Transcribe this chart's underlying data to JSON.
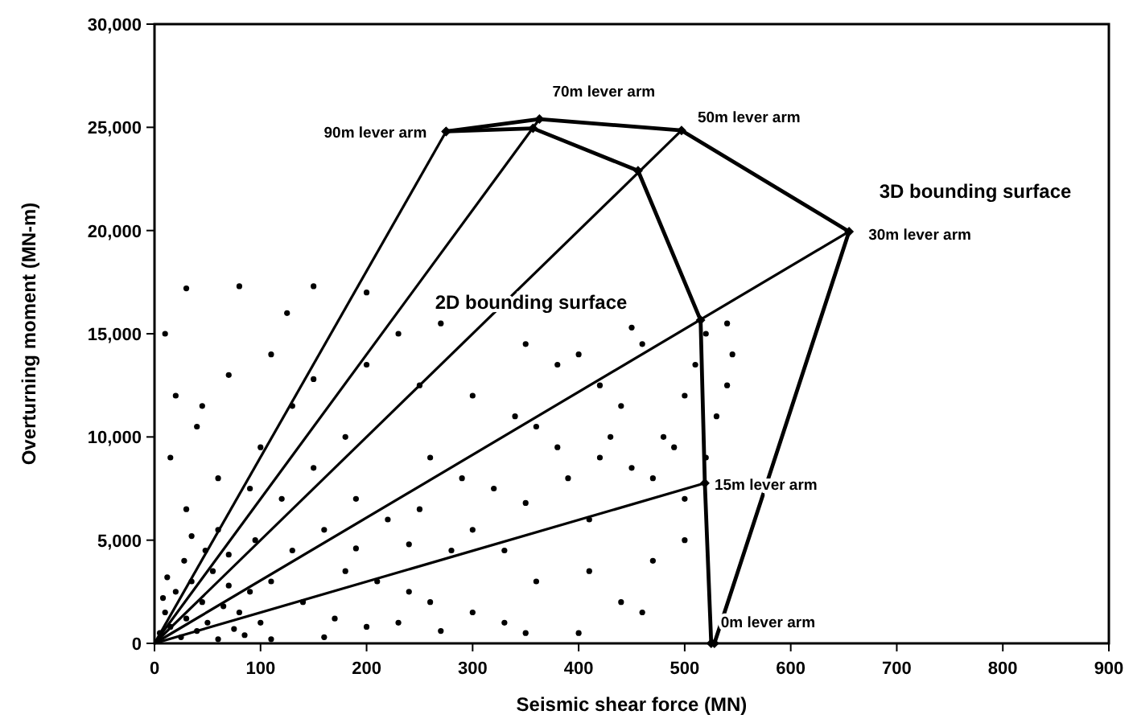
{
  "chart_data": {
    "type": "scatter",
    "xlabel": "Seismic shear force (MN)",
    "ylabel": "Overturning moment (MN-m)",
    "xlim": [
      0,
      900
    ],
    "ylim": [
      0,
      30000
    ],
    "xticks": [
      0,
      100,
      200,
      300,
      400,
      500,
      600,
      700,
      800,
      900
    ],
    "yticks": [
      0,
      {
        "value": 5000,
        "label": "5,000"
      },
      {
        "value": 10000,
        "label": "10,000"
      },
      {
        "value": 15000,
        "label": "15,000"
      },
      {
        "value": 20000,
        "label": "20,000"
      },
      {
        "value": 25000,
        "label": "25,000"
      },
      {
        "value": 30000,
        "label": "30,000"
      }
    ],
    "grid": false,
    "series": [
      {
        "color": "#000000",
        "marker": "circle",
        "x": [
          5,
          10,
          15,
          20,
          25,
          30,
          35,
          40,
          45,
          50,
          55,
          60,
          65,
          70,
          75,
          80,
          12,
          28,
          8,
          48,
          90,
          100,
          85,
          110,
          95,
          60,
          30,
          15,
          40,
          20,
          70,
          110,
          30,
          80,
          150,
          200,
          10,
          130,
          60,
          120,
          160,
          140,
          180,
          200,
          220,
          240,
          260,
          280,
          300,
          320,
          340,
          360,
          380,
          400,
          410,
          420,
          440,
          450,
          460,
          470,
          480,
          490,
          500,
          510,
          520,
          540,
          545,
          540,
          530,
          500,
          460,
          520,
          430,
          380,
          350,
          300,
          250,
          200,
          180,
          230,
          270,
          150,
          100,
          190,
          250,
          330,
          290,
          410,
          390,
          350,
          300,
          240,
          170,
          210,
          130,
          90,
          45,
          125,
          330,
          420,
          440,
          470,
          500,
          360,
          260,
          150,
          70,
          35,
          110,
          160,
          230,
          270,
          350,
          190,
          400,
          450
        ],
        "values": [
          500,
          1500,
          800,
          2500,
          300,
          1200,
          3000,
          600,
          2000,
          1000,
          3500,
          200,
          1800,
          2800,
          700,
          1500,
          3200,
          4000,
          2200,
          4500,
          2500,
          1000,
          400,
          3000,
          5000,
          5500,
          6500,
          9000,
          10500,
          12000,
          13000,
          14000,
          17200,
          17300,
          17300,
          17000,
          15000,
          11500,
          8000,
          7000,
          5500,
          2000,
          3500,
          800,
          6000,
          2500,
          9000,
          4500,
          1500,
          7500,
          11000,
          3000,
          9500,
          500,
          6000,
          12500,
          2000,
          8500,
          14500,
          4000,
          10000,
          9500,
          7000,
          13500,
          15000,
          15500,
          14000,
          12500,
          11000,
          5000,
          1500,
          9000,
          10000,
          13500,
          14500,
          12000,
          12500,
          13500,
          10000,
          15000,
          15500,
          8500,
          9500,
          7000,
          6500,
          4500,
          8000,
          3500,
          8000,
          6800,
          5500,
          4800,
          1200,
          3000,
          4500,
          7500,
          11500,
          16000,
          1000,
          9000,
          11500,
          8000,
          12000,
          10500,
          2000,
          12800,
          4300,
          5200,
          200,
          300,
          1000,
          600,
          500,
          4600,
          14000,
          15300
        ]
      },
      {
        "type": "line",
        "color": "#000000",
        "marker": "diamond",
        "x": [
          275,
          363,
          497,
          655,
          528
        ],
        "values": [
          24800,
          25400,
          24850,
          19950,
          0
        ]
      },
      {
        "type": "line",
        "color": "#000000",
        "marker": "diamond",
        "x": [
          275,
          357,
          456,
          515,
          519,
          525
        ],
        "values": [
          24800,
          24950,
          22900,
          15660,
          7760,
          0
        ]
      },
      {
        "type": "line",
        "color": "#000000",
        "marker": "none",
        "x": [
          0,
          275
        ],
        "values": [
          0,
          24800
        ]
      },
      {
        "type": "line",
        "color": "#000000",
        "marker": "none",
        "x": [
          0,
          363
        ],
        "values": [
          0,
          25400
        ]
      },
      {
        "type": "line",
        "color": "#000000",
        "marker": "none",
        "x": [
          0,
          497
        ],
        "values": [
          0,
          24850
        ]
      },
      {
        "type": "line",
        "color": "#000000",
        "marker": "none",
        "x": [
          0,
          655
        ],
        "values": [
          0,
          19950
        ]
      },
      {
        "type": "line",
        "color": "#000000",
        "marker": "none",
        "x": [
          0,
          519
        ],
        "values": [
          0,
          7760
        ]
      }
    ],
    "annotations": [
      {
        "text": "90m lever arm",
        "x": 275,
        "y": 24800
      },
      {
        "text": "70m lever arm",
        "x": 363,
        "y": 25400
      },
      {
        "text": "50m lever arm",
        "x": 497,
        "y": 24850
      },
      {
        "text": "30m lever arm",
        "x": 655,
        "y": 19950
      },
      {
        "text": "15m lever arm",
        "x": 519,
        "y": 7760
      },
      {
        "text": "0m lever arm",
        "x": 528,
        "y": 0
      },
      "3D bounding surface",
      "2D bounding surface"
    ]
  }
}
